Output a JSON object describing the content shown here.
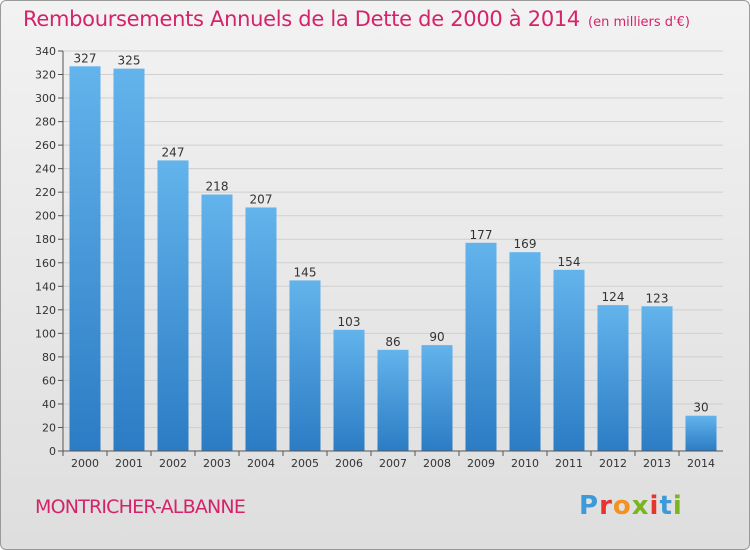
{
  "header": {
    "title": "Remboursements Annuels de la Dette de 2000 à 2014",
    "subtitle": "(en milliers d'€)"
  },
  "footer": {
    "commune": "MONTRICHER-ALBANNE",
    "logo": "Proxiti",
    "logo_colors": [
      "#3d9ad8",
      "#e7342d",
      "#f29223",
      "#7ab51d",
      "#e7342d",
      "#3d9ad8",
      "#7ab51d"
    ]
  },
  "colors": {
    "bar_top": "#63b3ec",
    "bar_bottom": "#2b7cc4",
    "grid": "#cfcfcf",
    "text": "#333333",
    "accent": "#d4236b"
  },
  "chart_data": {
    "type": "bar",
    "title": "Remboursements Annuels de la Dette de 2000 à 2014",
    "subtitle": "(en milliers d'€)",
    "xlabel": "",
    "ylabel": "",
    "categories": [
      "2000",
      "2001",
      "2002",
      "2003",
      "2004",
      "2005",
      "2006",
      "2007",
      "2008",
      "2009",
      "2010",
      "2011",
      "2012",
      "2013",
      "2014"
    ],
    "values": [
      327,
      325,
      247,
      218,
      207,
      145,
      103,
      86,
      90,
      177,
      169,
      154,
      124,
      123,
      30
    ],
    "ylim": [
      0,
      340
    ],
    "yticks": [
      0,
      20,
      40,
      60,
      80,
      100,
      120,
      140,
      160,
      180,
      200,
      220,
      240,
      260,
      280,
      300,
      320,
      340
    ],
    "grid": true,
    "data_labels": true,
    "legend": "none"
  }
}
